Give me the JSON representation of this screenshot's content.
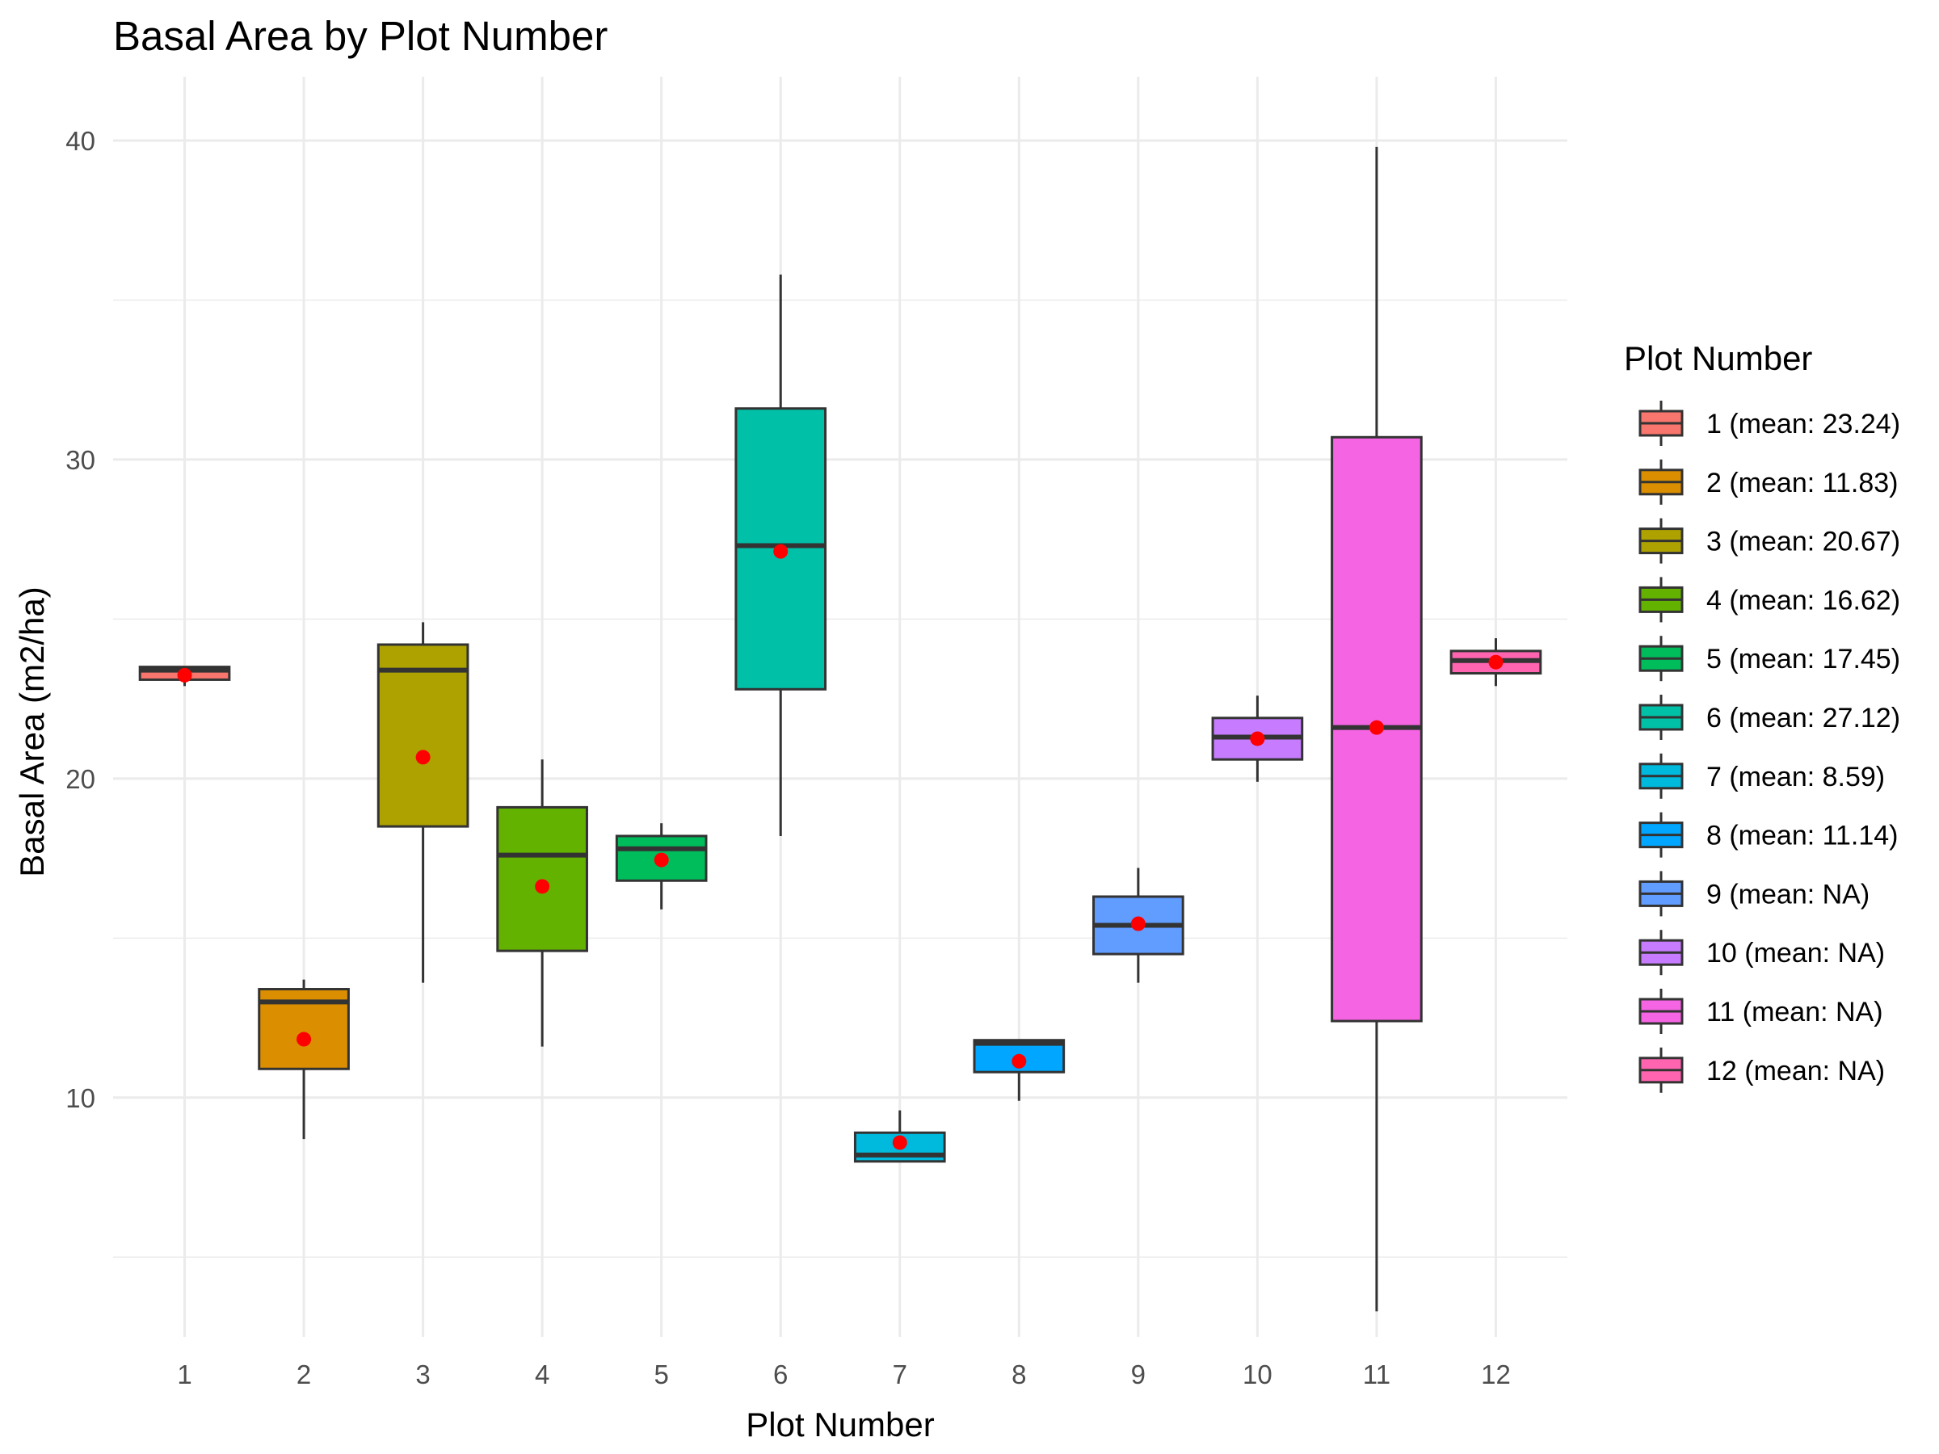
{
  "chart_data": {
    "type": "boxplot",
    "title": "Basal Area by Plot Number",
    "xlabel": "Plot Number",
    "ylabel": "Basal Area (m2/ha)",
    "ylim": [
      2.5,
      42.0
    ],
    "y_ticks": [
      10,
      20,
      30,
      40
    ],
    "grid": true,
    "legend": {
      "title": "Plot Number",
      "position": "right"
    },
    "mean_marker_color": "#ff0000",
    "series": [
      {
        "category": "1",
        "label": "1 (mean: 23.24)",
        "color": "#F8766D",
        "whisker_low": 22.9,
        "q1": 23.1,
        "median": 23.4,
        "q3": 23.5,
        "whisker_high": 23.5,
        "mean": 23.24
      },
      {
        "category": "2",
        "label": "2 (mean: 11.83)",
        "color": "#DB8E00",
        "whisker_low": 8.7,
        "q1": 10.9,
        "median": 13.0,
        "q3": 13.4,
        "whisker_high": 13.7,
        "mean": 11.83
      },
      {
        "category": "3",
        "label": "3 (mean: 20.67)",
        "color": "#AEA200",
        "whisker_low": 13.6,
        "q1": 18.5,
        "median": 23.4,
        "q3": 24.2,
        "whisker_high": 24.9,
        "mean": 20.67
      },
      {
        "category": "4",
        "label": "4 (mean: 16.62)",
        "color": "#64B200",
        "whisker_low": 11.6,
        "q1": 14.6,
        "median": 17.6,
        "q3": 19.1,
        "whisker_high": 20.6,
        "mean": 16.62
      },
      {
        "category": "5",
        "label": "5 (mean: 17.45)",
        "color": "#00BD5C",
        "whisker_low": 15.9,
        "q1": 16.8,
        "median": 17.8,
        "q3": 18.2,
        "whisker_high": 18.6,
        "mean": 17.45
      },
      {
        "category": "6",
        "label": "6 (mean: 27.12)",
        "color": "#00C1A7",
        "whisker_low": 18.2,
        "q1": 22.8,
        "median": 27.3,
        "q3": 31.6,
        "whisker_high": 35.8,
        "mean": 27.12
      },
      {
        "category": "7",
        "label": "7 (mean: 8.59)",
        "color": "#00BADE",
        "whisker_low": 8.0,
        "q1": 8.0,
        "median": 8.2,
        "q3": 8.9,
        "whisker_high": 9.6,
        "mean": 8.59
      },
      {
        "category": "8",
        "label": "8 (mean: 11.14)",
        "color": "#00A6FF",
        "whisker_low": 9.9,
        "q1": 10.8,
        "median": 11.7,
        "q3": 11.8,
        "whisker_high": 11.8,
        "mean": 11.14
      },
      {
        "category": "9",
        "label": "9 (mean: NA)",
        "color": "#619CFF",
        "whisker_low": 13.6,
        "q1": 14.5,
        "median": 15.4,
        "q3": 16.3,
        "whisker_high": 17.2,
        "mean": 15.45
      },
      {
        "category": "10",
        "label": "10 (mean: NA)",
        "color": "#C77CFF",
        "whisker_low": 19.9,
        "q1": 20.6,
        "median": 21.3,
        "q3": 21.9,
        "whisker_high": 22.6,
        "mean": 21.25
      },
      {
        "category": "11",
        "label": "11 (mean: NA)",
        "color": "#F564E3",
        "whisker_low": 3.3,
        "q1": 12.4,
        "median": 21.6,
        "q3": 30.7,
        "whisker_high": 39.8,
        "mean": 21.6
      },
      {
        "category": "12",
        "label": "12 (mean: NA)",
        "color": "#FF64B0",
        "whisker_low": 22.9,
        "q1": 23.3,
        "median": 23.7,
        "q3": 24.0,
        "whisker_high": 24.4,
        "mean": 23.65
      }
    ]
  }
}
